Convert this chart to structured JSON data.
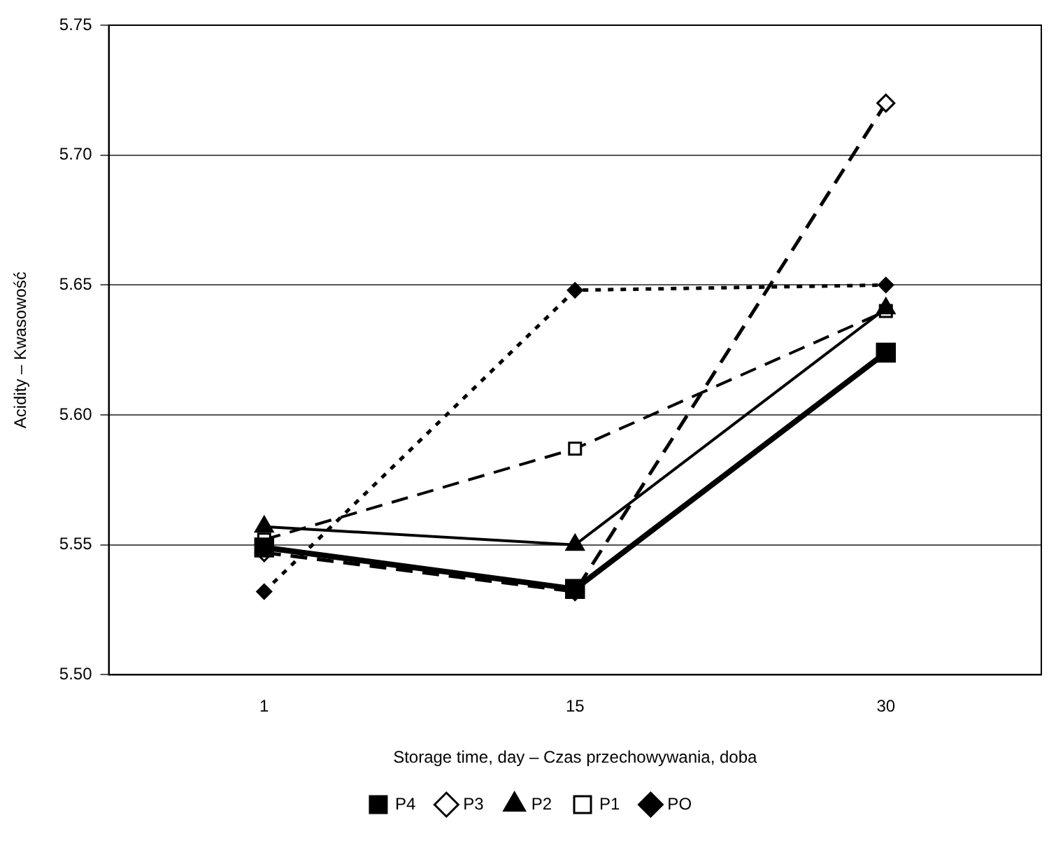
{
  "chart_data": {
    "type": "line",
    "xlabel": "Storage time, day – Czas przechowywania, doba",
    "ylabel": "Acidity – Kwasowość",
    "categories": [
      "1",
      "15",
      "30"
    ],
    "ylim": [
      5.5,
      5.75
    ],
    "yticks": [
      {
        "value": 5.5,
        "label": "5.50"
      },
      {
        "value": 5.55,
        "label": "5.55"
      },
      {
        "value": 5.6,
        "label": "5.60"
      },
      {
        "value": 5.65,
        "label": "5.65"
      },
      {
        "value": 5.7,
        "label": "5.70"
      },
      {
        "value": 5.75,
        "label": "5.75"
      }
    ],
    "grid": "y",
    "legend": "bottom",
    "series": [
      {
        "name": "PO",
        "color": "#000000",
        "values": [
          5.532,
          5.648,
          5.65
        ],
        "marker": "diamond",
        "line_style": "dotted"
      },
      {
        "name": "P1",
        "color": "#000000",
        "values": [
          5.552,
          5.587,
          5.64
        ],
        "marker": "square",
        "line_style": "dashed"
      },
      {
        "name": "P2",
        "color": "#000000",
        "values": [
          5.557,
          5.55,
          5.641
        ],
        "marker": "triangle",
        "line_style": "solid"
      },
      {
        "name": "P3",
        "color": "#000000",
        "values": [
          5.547,
          5.532,
          5.72
        ],
        "marker": "diamond",
        "line_style": "dashed"
      },
      {
        "name": "P4",
        "color": "#000000",
        "values": [
          5.549,
          5.533,
          5.624
        ],
        "marker": "square",
        "line_style": "solid"
      }
    ]
  }
}
